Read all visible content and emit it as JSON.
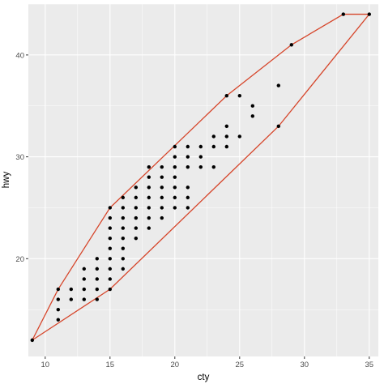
{
  "chart_data": {
    "type": "scatter",
    "xlabel": "cty",
    "ylabel": "hwy",
    "xlim": [
      8.7,
      35.7
    ],
    "ylim": [
      10.4,
      45.0
    ],
    "x_ticks": [
      10,
      15,
      20,
      25,
      30,
      35
    ],
    "x_minor_ticks": [
      12.5,
      17.5,
      22.5,
      27.5,
      32.5
    ],
    "y_ticks": [
      20,
      30,
      40
    ],
    "y_minor_ticks": [
      15,
      25,
      35,
      45
    ],
    "grid": true,
    "colors": {
      "panel": "#ebebeb",
      "grid": "#ffffff",
      "points": "#000000",
      "hull": "#d6452a"
    },
    "points": [
      [
        9,
        12
      ],
      [
        11,
        14
      ],
      [
        11,
        15
      ],
      [
        11,
        16
      ],
      [
        11,
        17
      ],
      [
        12,
        16
      ],
      [
        12,
        17
      ],
      [
        13,
        16
      ],
      [
        13,
        17
      ],
      [
        13,
        18
      ],
      [
        13,
        19
      ],
      [
        14,
        16
      ],
      [
        14,
        17
      ],
      [
        14,
        18
      ],
      [
        14,
        19
      ],
      [
        14,
        20
      ],
      [
        15,
        17
      ],
      [
        15,
        18
      ],
      [
        15,
        19
      ],
      [
        15,
        20
      ],
      [
        15,
        21
      ],
      [
        15,
        22
      ],
      [
        15,
        23
      ],
      [
        15,
        24
      ],
      [
        15,
        25
      ],
      [
        16,
        19
      ],
      [
        16,
        20
      ],
      [
        16,
        21
      ],
      [
        16,
        22
      ],
      [
        16,
        23
      ],
      [
        16,
        24
      ],
      [
        16,
        25
      ],
      [
        16,
        26
      ],
      [
        17,
        22
      ],
      [
        17,
        23
      ],
      [
        17,
        24
      ],
      [
        17,
        25
      ],
      [
        17,
        26
      ],
      [
        17,
        27
      ],
      [
        18,
        23
      ],
      [
        18,
        24
      ],
      [
        18,
        25
      ],
      [
        18,
        26
      ],
      [
        18,
        27
      ],
      [
        18,
        28
      ],
      [
        18,
        29
      ],
      [
        19,
        24
      ],
      [
        19,
        25
      ],
      [
        19,
        26
      ],
      [
        19,
        27
      ],
      [
        19,
        28
      ],
      [
        19,
        29
      ],
      [
        20,
        25
      ],
      [
        20,
        26
      ],
      [
        20,
        27
      ],
      [
        20,
        28
      ],
      [
        20,
        29
      ],
      [
        20,
        30
      ],
      [
        20,
        31
      ],
      [
        21,
        25
      ],
      [
        21,
        26
      ],
      [
        21,
        27
      ],
      [
        21,
        29
      ],
      [
        21,
        30
      ],
      [
        21,
        31
      ],
      [
        22,
        29
      ],
      [
        22,
        30
      ],
      [
        22,
        31
      ],
      [
        23,
        29
      ],
      [
        23,
        31
      ],
      [
        23,
        32
      ],
      [
        24,
        31
      ],
      [
        24,
        32
      ],
      [
        24,
        33
      ],
      [
        24,
        36
      ],
      [
        25,
        32
      ],
      [
        25,
        36
      ],
      [
        26,
        34
      ],
      [
        26,
        35
      ],
      [
        28,
        33
      ],
      [
        28,
        37
      ],
      [
        29,
        41
      ],
      [
        33,
        44
      ],
      [
        35,
        44
      ]
    ],
    "hull": [
      [
        9,
        12
      ],
      [
        11,
        17
      ],
      [
        15,
        25
      ],
      [
        24,
        36
      ],
      [
        29,
        41
      ],
      [
        33,
        44
      ],
      [
        35,
        44
      ],
      [
        28,
        33
      ],
      [
        15,
        17
      ],
      [
        9,
        12
      ]
    ]
  }
}
